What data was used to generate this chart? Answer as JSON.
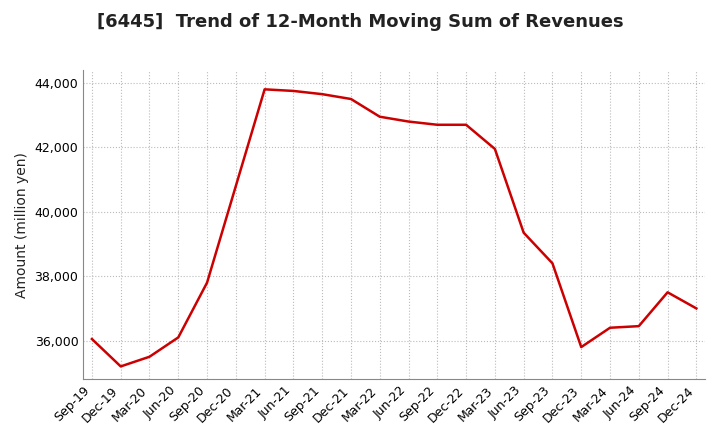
{
  "title": "[6445]  Trend of 12-Month Moving Sum of Revenues",
  "ylabel": "Amount (million yen)",
  "background_color": "#ffffff",
  "line_color": "#cc0000",
  "grid_color": "#bbbbbb",
  "title_color": "#222222",
  "x_labels": [
    "Sep-19",
    "Dec-19",
    "Mar-20",
    "Jun-20",
    "Sep-20",
    "Dec-20",
    "Mar-21",
    "Jun-21",
    "Sep-21",
    "Dec-21",
    "Mar-22",
    "Jun-22",
    "Sep-22",
    "Dec-22",
    "Mar-23",
    "Jun-23",
    "Sep-23",
    "Dec-23",
    "Mar-24",
    "Jun-24",
    "Sep-24",
    "Dec-24"
  ],
  "values": [
    36050,
    35200,
    35500,
    36100,
    37800,
    40800,
    43800,
    43750,
    43650,
    43500,
    42950,
    42800,
    42700,
    42700,
    41950,
    39350,
    38400,
    35800,
    36400,
    36450,
    37500,
    37000
  ],
  "ylim": [
    34800,
    44400
  ],
  "yticks": [
    36000,
    38000,
    40000,
    42000,
    44000
  ],
  "title_fontsize": 13,
  "axis_fontsize": 10,
  "tick_fontsize": 9,
  "line_width": 1.8
}
